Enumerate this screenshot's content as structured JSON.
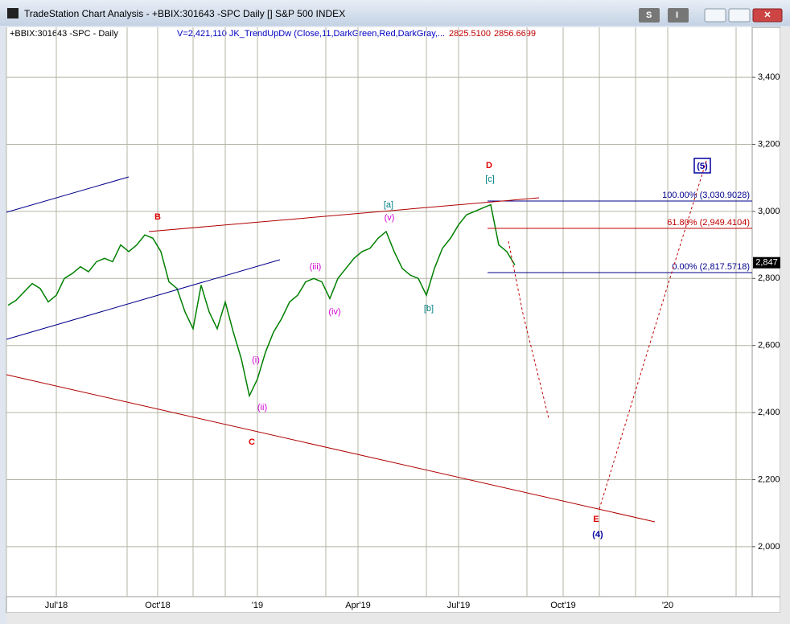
{
  "window": {
    "title": "TradeStation Chart Analysis - +BBIX:301643 -SPC Daily [] S&P 500 INDEX",
    "buttons": [
      "S",
      "I"
    ]
  },
  "chart_data": {
    "type": "line",
    "symbol": "+BBIX:301643 -SPC - Daily",
    "indicator": "V=2,421,110  JK_TrendUpDw (Close,11,DarkGreen,Red,DarkGray,...",
    "indicator_values": [
      {
        "value": 2825.51,
        "label": "2825.5100"
      },
      {
        "value": 2856.6699,
        "label": "2856.6699"
      }
    ],
    "series": [
      {
        "color": "#008000",
        "values": [
          2720,
          2735,
          2760,
          2785,
          2770,
          2730,
          2750,
          2800,
          2815,
          2835,
          2820,
          2850,
          2860,
          2850,
          2900,
          2880,
          2900,
          2930,
          2920,
          2880,
          2790,
          2770,
          2700,
          2650,
          2780,
          2700,
          2650,
          2730,
          2640,
          2560,
          2450,
          2500,
          2580,
          2640,
          2680,
          2730,
          2750,
          2790,
          2800,
          2790,
          2740,
          2800,
          2830,
          2860,
          2880,
          2890,
          2920,
          2940,
          2880,
          2830,
          2810,
          2800,
          2750,
          2830,
          2890,
          2920,
          2960,
          2990,
          3000,
          3010,
          3020,
          2900,
          2880,
          2840
        ]
      }
    ],
    "ylim": [
      1851,
      3549
    ],
    "yticks": [
      {
        "value": 2000,
        "label": "2,000"
      },
      {
        "value": 2200,
        "label": "2,200"
      },
      {
        "value": 2400,
        "label": "2,400"
      },
      {
        "value": 2600,
        "label": "2,600"
      },
      {
        "value": 2800,
        "label": "2,800"
      },
      {
        "value": 3000,
        "label": "3,000"
      },
      {
        "value": 3200,
        "label": "3,200"
      },
      {
        "value": 3400,
        "label": "3,400"
      }
    ],
    "xticks": [
      "Jul'18",
      "Oct'18",
      "'19",
      "Apr'19",
      "Jul'19",
      "Oct'19",
      "'20"
    ],
    "grid": true,
    "last_price": {
      "value": 2847,
      "label": "2,847"
    },
    "fib_levels": [
      {
        "value": 3030.9028,
        "label": "100.00% (3,030.9028)",
        "color": "#00008b"
      },
      {
        "value": 2949.4104,
        "label": "61.80% (2,949.4104)",
        "color": "#c00000"
      },
      {
        "value": 2817.5718,
        "label": "0.00% (2,817.5718)",
        "color": "#00008b"
      }
    ],
    "annotations": [
      {
        "text": "B",
        "color": "#e00000"
      },
      {
        "text": "C",
        "color": "#e00000"
      },
      {
        "text": "D",
        "color": "#e00000"
      },
      {
        "text": "E",
        "color": "#e00000"
      },
      {
        "text": "(4)",
        "color": "#0000a0"
      },
      {
        "text": "(5)",
        "color": "#0000a0"
      },
      {
        "text": "[a]",
        "color": "#008080"
      },
      {
        "text": "[b]",
        "color": "#008080"
      },
      {
        "text": "[c]",
        "color": "#008080"
      },
      {
        "text": "(i)",
        "color": "#d000d0"
      },
      {
        "text": "(ii)",
        "color": "#d000d0"
      },
      {
        "text": "(iii)",
        "color": "#d000d0"
      },
      {
        "text": "(iv)",
        "color": "#d000d0"
      },
      {
        "text": "(v)",
        "color": "#d000d0"
      }
    ]
  }
}
